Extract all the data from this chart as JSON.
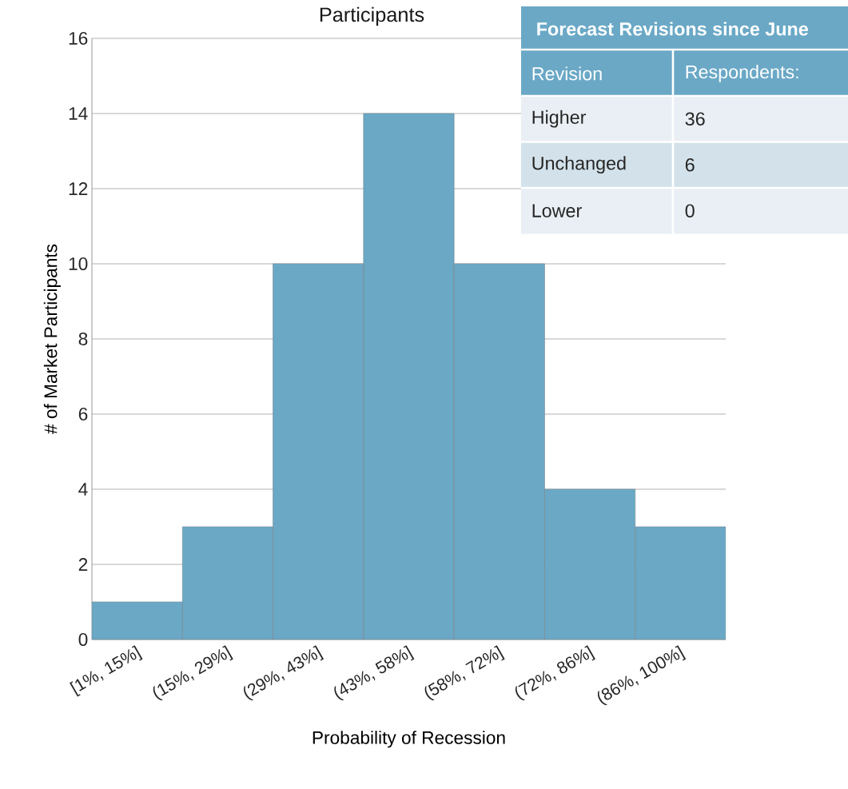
{
  "chart_data": [
    {
      "type": "bar",
      "title": "Participants",
      "xlabel": "Probability of Recession",
      "ylabel": "# of Market Participants",
      "categories": [
        "[1%, 15%]",
        "(15%, 29%]",
        "(29%, 43%]",
        "(43%, 58%]",
        "(58%, 72%]",
        "(72%, 86%]",
        "(86%, 100%]"
      ],
      "values": [
        1,
        3,
        10,
        14,
        10,
        4,
        3
      ],
      "color": "#6aa8c6",
      "ylim": [
        0,
        16
      ],
      "yticks": [
        0,
        2,
        4,
        6,
        8,
        10,
        12,
        14,
        16
      ],
      "grid": "y"
    },
    {
      "type": "other",
      "title": "Forecast Revisions since June",
      "xlabel": "Revision",
      "ylabel": "Respondents:",
      "categories": [
        "Higher",
        "Unchanged",
        "Lower"
      ],
      "values": [
        36,
        6,
        0
      ],
      "data_labels": true
    }
  ]
}
